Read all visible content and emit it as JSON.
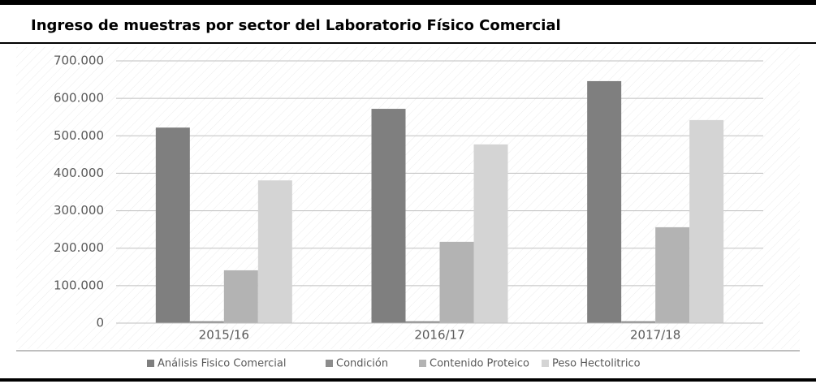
{
  "chart_data": {
    "type": "bar",
    "title": "Ingreso de muestras por sector del Laboratorio Físico Comercial",
    "categories": [
      "2015/16",
      "2016/17",
      "2017/18"
    ],
    "series": [
      {
        "name": "Análisis Fisico Comercial",
        "color": "#7f7f7f",
        "values": [
          522000,
          572000,
          646000
        ]
      },
      {
        "name": "Condición",
        "color": "#8c8c8c",
        "values": [
          5000,
          5000,
          5000
        ]
      },
      {
        "name": "Contenido Proteico",
        "color": "#b3b3b3",
        "values": [
          141000,
          217000,
          256000
        ]
      },
      {
        "name": "Peso Hectolitrico",
        "color": "#d4d4d4",
        "values": [
          381000,
          477000,
          542000
        ]
      }
    ],
    "ylim": [
      0,
      700000
    ],
    "yticks": [
      0,
      {
        "value": 100000,
        "label": "100.000"
      },
      {
        "value": 200000,
        "label": "200.000"
      },
      {
        "value": 300000,
        "label": "300.000"
      },
      {
        "value": 400000,
        "label": "400.000"
      },
      {
        "value": 500000,
        "label": "500.000"
      },
      {
        "value": 600000,
        "label": "600.000"
      },
      {
        "value": 700000,
        "label": "700.000"
      }
    ],
    "grid": true,
    "legend": "bottom"
  }
}
